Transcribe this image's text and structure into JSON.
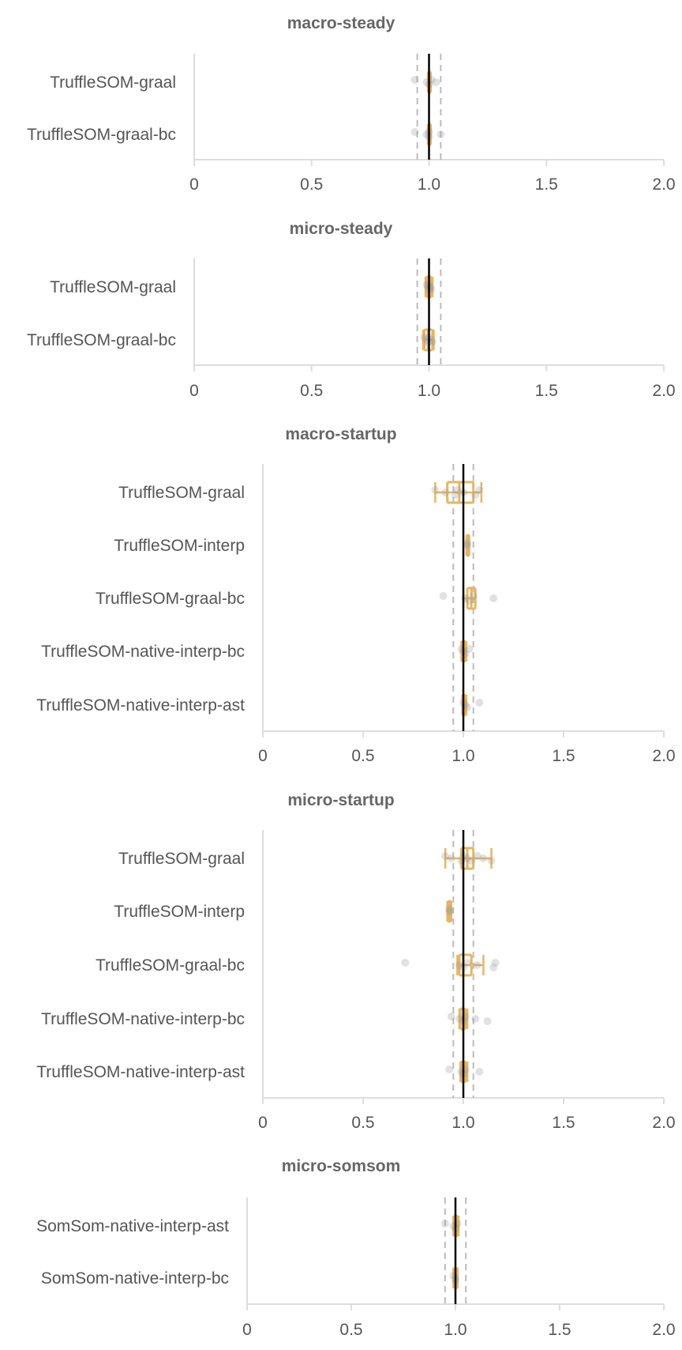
{
  "colors": {
    "box": "#e8b563",
    "points": "#9a9a9a",
    "axis": "#dddddd",
    "reference_line": "#000000",
    "threshold_lines": "#bbbbbb",
    "title": "#666666",
    "label": "#555555"
  },
  "chart_data": [
    {
      "type": "box",
      "title": "macro-steady",
      "orientation": "horizontal",
      "xlim": [
        0,
        2.0
      ],
      "xticks": [
        "0",
        "0.5",
        "1.0",
        "1.5",
        "2.0"
      ],
      "reference_line": 1.0,
      "threshold_lines": [
        0.95,
        1.05
      ],
      "rows": [
        {
          "label": "TruffleSOM-graal",
          "whisker_low": 0.995,
          "q1": 0.997,
          "median": 1.0,
          "q3": 1.003,
          "whisker_high": 1.005,
          "points": [
            0.94,
            0.99,
            1.0,
            1.01,
            1.03
          ]
        },
        {
          "label": "TruffleSOM-graal-bc",
          "whisker_low": 0.995,
          "q1": 0.997,
          "median": 1.0,
          "q3": 1.003,
          "whisker_high": 1.005,
          "points": [
            0.94,
            0.99,
            1.0,
            1.0,
            1.05
          ]
        }
      ]
    },
    {
      "type": "box",
      "title": "micro-steady",
      "orientation": "horizontal",
      "xlim": [
        0,
        2.0
      ],
      "xticks": [
        "0",
        "0.5",
        "1.0",
        "1.5",
        "2.0"
      ],
      "reference_line": 1.0,
      "threshold_lines": [
        0.95,
        1.05
      ],
      "rows": [
        {
          "label": "TruffleSOM-graal",
          "whisker_low": 0.985,
          "q1": 0.99,
          "median": 1.0,
          "q3": 1.01,
          "whisker_high": 1.015,
          "points": [
            0.99,
            0.995,
            1.0,
            1.0,
            1.005,
            1.01
          ]
        },
        {
          "label": "TruffleSOM-graal-bc",
          "whisker_low": 0.975,
          "q1": 0.98,
          "median": 0.995,
          "q3": 1.015,
          "whisker_high": 1.02,
          "points": [
            0.98,
            0.99,
            0.995,
            1.0,
            1.01,
            1.015
          ]
        }
      ]
    },
    {
      "type": "box",
      "title": "macro-startup",
      "orientation": "horizontal",
      "xlim": [
        0,
        2.0
      ],
      "xticks": [
        "0",
        "0.5",
        "1.0",
        "1.5",
        "2.0"
      ],
      "reference_line": 1.0,
      "threshold_lines": [
        0.95,
        1.05
      ],
      "rows": [
        {
          "label": "TruffleSOM-graal",
          "whisker_low": 0.86,
          "q1": 0.92,
          "median": 0.98,
          "q3": 1.05,
          "whisker_high": 1.09,
          "points": [
            0.86,
            0.91,
            0.96,
            0.97,
            1.0,
            1.06,
            1.08
          ]
        },
        {
          "label": "TruffleSOM-interp",
          "whisker_low": 1.015,
          "q1": 1.017,
          "median": 1.02,
          "q3": 1.023,
          "whisker_high": 1.025,
          "points": [
            1.02,
            1.02
          ]
        },
        {
          "label": "TruffleSOM-graal-bc",
          "whisker_low": 1.0,
          "q1": 1.02,
          "median": 1.04,
          "q3": 1.06,
          "whisker_high": 1.06,
          "points": [
            0.9,
            1.01,
            1.03,
            1.05,
            1.15
          ]
        },
        {
          "label": "TruffleSOM-native-interp-bc",
          "whisker_low": 0.99,
          "q1": 0.995,
          "median": 1.0,
          "q3": 1.01,
          "whisker_high": 1.015,
          "points": [
            0.99,
            1.0,
            1.01,
            1.03
          ]
        },
        {
          "label": "TruffleSOM-native-interp-ast",
          "whisker_low": 0.995,
          "q1": 0.997,
          "median": 1.0,
          "q3": 1.01,
          "whisker_high": 1.015,
          "points": [
            1.0,
            1.01,
            1.02,
            1.08
          ]
        }
      ]
    },
    {
      "type": "box",
      "title": "micro-startup",
      "orientation": "horizontal",
      "xlim": [
        0,
        2.0
      ],
      "xticks": [
        "0",
        "0.5",
        "1.0",
        "1.5",
        "2.0"
      ],
      "reference_line": 1.0,
      "threshold_lines": [
        0.95,
        1.05
      ],
      "rows": [
        {
          "label": "TruffleSOM-graal",
          "whisker_low": 0.91,
          "q1": 0.99,
          "median": 1.02,
          "q3": 1.05,
          "whisker_high": 1.14,
          "points": [
            0.91,
            0.94,
            0.99,
            1.0,
            1.02,
            1.04,
            1.07,
            1.1,
            1.14
          ]
        },
        {
          "label": "TruffleSOM-interp",
          "whisker_low": 0.92,
          "q1": 0.925,
          "median": 0.93,
          "q3": 0.935,
          "whisker_high": 0.94,
          "points": [
            0.93,
            0.93
          ]
        },
        {
          "label": "TruffleSOM-graal-bc",
          "whisker_low": 0.97,
          "q1": 0.98,
          "median": 1.0,
          "q3": 1.04,
          "whisker_high": 1.1,
          "points": [
            0.71,
            0.98,
            1.0,
            1.02,
            1.07,
            1.15,
            1.16
          ]
        },
        {
          "label": "TruffleSOM-native-interp-bc",
          "whisker_low": 0.98,
          "q1": 0.985,
          "median": 1.0,
          "q3": 1.01,
          "whisker_high": 1.02,
          "points": [
            0.94,
            0.98,
            1.0,
            1.01,
            1.06,
            1.12
          ]
        },
        {
          "label": "TruffleSOM-native-interp-ast",
          "whisker_low": 0.985,
          "q1": 0.99,
          "median": 1.0,
          "q3": 1.01,
          "whisker_high": 1.02,
          "points": [
            0.93,
            0.99,
            1.0,
            1.01,
            1.08
          ]
        }
      ]
    },
    {
      "type": "box",
      "title": "micro-somsom",
      "orientation": "horizontal",
      "xlim": [
        0,
        2.0
      ],
      "xticks": [
        "0",
        "0.5",
        "1.0",
        "1.5",
        "2.0"
      ],
      "reference_line": 1.0,
      "threshold_lines": [
        0.95,
        1.05
      ],
      "rows": [
        {
          "label": "SomSom-native-interp-ast",
          "whisker_low": 0.99,
          "q1": 0.995,
          "median": 1.0,
          "q3": 1.01,
          "whisker_high": 1.015,
          "points": [
            0.95,
            0.99,
            1.0,
            1.01
          ]
        },
        {
          "label": "SomSom-native-interp-bc",
          "whisker_low": 0.99,
          "q1": 0.995,
          "median": 1.0,
          "q3": 1.005,
          "whisker_high": 1.01,
          "points": [
            0.99,
            1.0,
            1.0
          ]
        }
      ]
    }
  ]
}
